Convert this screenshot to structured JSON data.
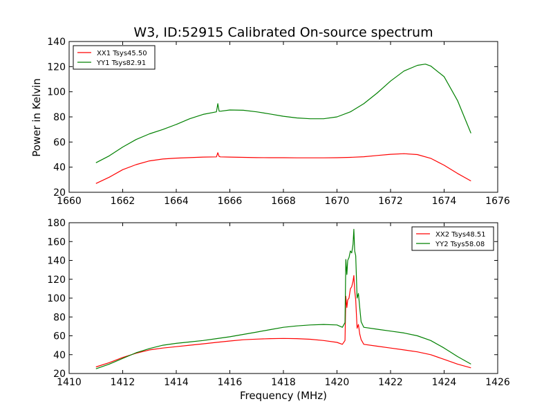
{
  "figure": {
    "title": "W3, ID:52915 Calibrated On-source spectrum",
    "ylabel": "Power in Kelvin",
    "xlabel": "Frequency (MHz)"
  },
  "chart_data": [
    {
      "type": "line",
      "title": "W3, ID:52915 Calibrated On-source spectrum",
      "ylabel": "Power in Kelvin",
      "xlabel": "",
      "xlim": [
        1660,
        1676
      ],
      "ylim": [
        20,
        140
      ],
      "xticks": [
        1660,
        1662,
        1664,
        1666,
        1668,
        1670,
        1672,
        1674,
        1676
      ],
      "yticks": [
        20,
        40,
        60,
        80,
        100,
        120,
        140
      ],
      "grid": false,
      "legend_position": "top-left",
      "series": [
        {
          "name": "XX1 Tsys45.50",
          "color": "#ff0000",
          "x": [
            1661.0,
            1661.5,
            1662.0,
            1662.5,
            1663.0,
            1663.5,
            1664.0,
            1664.5,
            1665.0,
            1665.5,
            1665.55,
            1665.6,
            1665.65,
            1666.0,
            1666.5,
            1667.0,
            1667.5,
            1668.0,
            1668.5,
            1669.0,
            1669.5,
            1670.0,
            1670.5,
            1671.0,
            1671.5,
            1672.0,
            1672.5,
            1673.0,
            1673.5,
            1674.0,
            1674.5,
            1675.0
          ],
          "y": [
            27,
            32,
            38,
            42,
            45,
            46.5,
            47.2,
            47.6,
            48,
            48.2,
            51.5,
            48.5,
            48.2,
            48,
            47.8,
            47.6,
            47.5,
            47.5,
            47.4,
            47.4,
            47.4,
            47.5,
            47.8,
            48.3,
            49.3,
            50.2,
            50.7,
            50,
            47,
            41.5,
            35,
            29
          ]
        },
        {
          "name": "YY1 Tsys82.91",
          "color": "#008000",
          "x": [
            1661.0,
            1661.5,
            1662.0,
            1662.5,
            1663.0,
            1663.5,
            1664.0,
            1664.5,
            1665.0,
            1665.5,
            1665.55,
            1665.6,
            1665.65,
            1666.0,
            1666.5,
            1667.0,
            1667.5,
            1668.0,
            1668.5,
            1669.0,
            1669.5,
            1670.0,
            1670.5,
            1671.0,
            1671.5,
            1672.0,
            1672.5,
            1673.0,
            1673.3,
            1673.5,
            1674.0,
            1674.5,
            1675.0
          ],
          "y": [
            43.5,
            49,
            56,
            62,
            66.5,
            70,
            74,
            78.5,
            82,
            84,
            90.5,
            84.5,
            84.5,
            85.5,
            85.3,
            84,
            82.3,
            80.5,
            79.2,
            78.5,
            78.5,
            80,
            84,
            90.5,
            99,
            108.5,
            116.5,
            121,
            122,
            120.5,
            112,
            93,
            67
          ]
        }
      ]
    },
    {
      "type": "line",
      "title": "",
      "ylabel": "",
      "xlabel": "Frequency (MHz)",
      "xlim": [
        1410,
        1426
      ],
      "ylim": [
        20,
        180
      ],
      "xticks": [
        1410,
        1412,
        1414,
        1416,
        1418,
        1420,
        1422,
        1424,
        1426
      ],
      "yticks": [
        20,
        40,
        60,
        80,
        100,
        120,
        140,
        160,
        180
      ],
      "grid": false,
      "legend_position": "top-right",
      "series": [
        {
          "name": "XX2 Tsys48.51",
          "color": "#ff0000",
          "x": [
            1411.0,
            1411.5,
            1412.0,
            1412.5,
            1413.0,
            1413.5,
            1414.0,
            1414.5,
            1415.0,
            1415.5,
            1416.0,
            1416.5,
            1417.0,
            1417.5,
            1418.0,
            1418.5,
            1419.0,
            1419.5,
            1420.0,
            1420.2,
            1420.3,
            1420.33,
            1420.37,
            1420.4,
            1420.45,
            1420.5,
            1420.55,
            1420.6,
            1420.63,
            1420.66,
            1420.7,
            1420.75,
            1420.8,
            1420.85,
            1420.9,
            1421.0,
            1421.5,
            1422.0,
            1422.5,
            1423.0,
            1423.5,
            1424.0,
            1424.5,
            1425.0
          ],
          "y": [
            27,
            31.5,
            37,
            41.5,
            45,
            47,
            48.5,
            50,
            51.5,
            53,
            54.5,
            55.8,
            56.5,
            57,
            57.2,
            57,
            56.3,
            55,
            53,
            51,
            55,
            102,
            90,
            98,
            100,
            110,
            112,
            118,
            124,
            108,
            98,
            68,
            72,
            62,
            56,
            51,
            49,
            47,
            45,
            43,
            40,
            35,
            30,
            26
          ]
        },
        {
          "name": "YY2 Tsys58.08",
          "color": "#008000",
          "x": [
            1411.0,
            1411.5,
            1412.0,
            1412.5,
            1413.0,
            1413.5,
            1414.0,
            1414.5,
            1415.0,
            1415.5,
            1416.0,
            1416.5,
            1417.0,
            1417.5,
            1418.0,
            1418.5,
            1419.0,
            1419.5,
            1420.0,
            1420.2,
            1420.3,
            1420.33,
            1420.37,
            1420.4,
            1420.45,
            1420.5,
            1420.55,
            1420.6,
            1420.63,
            1420.66,
            1420.7,
            1420.75,
            1420.8,
            1420.85,
            1420.9,
            1421.0,
            1421.5,
            1422.0,
            1422.5,
            1423.0,
            1423.5,
            1424.0,
            1424.5,
            1425.0
          ],
          "y": [
            25,
            30,
            36,
            42,
            46.5,
            50,
            52,
            53.5,
            55,
            57,
            59,
            61.5,
            64,
            66.5,
            69,
            70.5,
            71.5,
            72,
            71.5,
            69,
            74,
            141,
            125,
            140,
            143,
            150,
            148,
            157,
            173,
            150,
            145,
            100,
            105,
            90,
            75,
            69,
            67,
            65,
            63,
            60,
            55,
            47,
            38,
            30
          ]
        }
      ]
    }
  ]
}
